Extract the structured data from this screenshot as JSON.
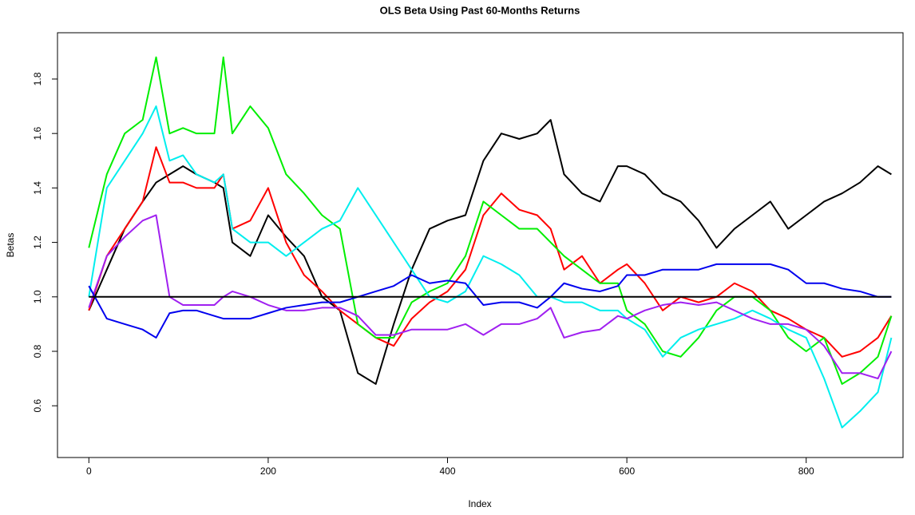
{
  "chart_data": {
    "type": "line",
    "title": "OLS Beta Using Past 60-Months Returns",
    "x_label": "Index",
    "y_label": "Betas",
    "x": [
      0,
      20,
      40,
      60,
      75,
      90,
      105,
      120,
      140,
      150,
      160,
      180,
      200,
      220,
      240,
      260,
      280,
      300,
      320,
      340,
      360,
      380,
      400,
      420,
      440,
      460,
      480,
      500,
      515,
      530,
      550,
      570,
      590,
      600,
      620,
      640,
      660,
      680,
      700,
      720,
      740,
      760,
      780,
      800,
      820,
      840,
      860,
      880,
      895
    ],
    "series": [
      {
        "color": "#000000",
        "values": [
          0.95,
          1.1,
          1.25,
          1.35,
          1.42,
          1.45,
          1.48,
          1.45,
          1.42,
          1.4,
          1.2,
          1.15,
          1.3,
          1.22,
          1.15,
          1.0,
          0.95,
          0.72,
          0.68,
          0.9,
          1.1,
          1.25,
          1.28,
          1.3,
          1.5,
          1.6,
          1.58,
          1.6,
          1.65,
          1.45,
          1.38,
          1.35,
          1.48,
          1.48,
          1.45,
          1.38,
          1.35,
          1.28,
          1.18,
          1.25,
          1.3,
          1.35,
          1.25,
          1.3,
          1.35,
          1.38,
          1.42,
          1.48,
          1.45
        ]
      },
      {
        "color": "#ff0000",
        "values": [
          0.95,
          1.15,
          1.25,
          1.35,
          1.55,
          1.42,
          1.42,
          1.4,
          1.4,
          1.45,
          1.25,
          1.28,
          1.4,
          1.2,
          1.08,
          1.02,
          0.95,
          0.9,
          0.85,
          0.82,
          0.92,
          0.98,
          1.02,
          1.1,
          1.3,
          1.38,
          1.32,
          1.3,
          1.25,
          1.1,
          1.15,
          1.05,
          1.1,
          1.12,
          1.05,
          0.95,
          1.0,
          0.98,
          1.0,
          1.05,
          1.02,
          0.95,
          0.92,
          0.88,
          0.85,
          0.78,
          0.8,
          0.85,
          0.93
        ]
      },
      {
        "color": "#00ee00",
        "values": [
          1.18,
          1.45,
          1.6,
          1.65,
          1.88,
          1.6,
          1.62,
          1.6,
          1.6,
          1.88,
          1.6,
          1.7,
          1.62,
          1.45,
          1.38,
          1.3,
          1.25,
          0.9,
          0.85,
          0.85,
          0.98,
          1.02,
          1.05,
          1.15,
          1.35,
          1.3,
          1.25,
          1.25,
          1.2,
          1.15,
          1.1,
          1.05,
          1.05,
          0.95,
          0.9,
          0.8,
          0.78,
          0.85,
          0.95,
          1.0,
          1.0,
          0.95,
          0.85,
          0.8,
          0.85,
          0.68,
          0.72,
          0.78,
          0.93
        ]
      },
      {
        "color": "#00eeee",
        "values": [
          1.0,
          1.4,
          1.5,
          1.6,
          1.7,
          1.5,
          1.52,
          1.45,
          1.42,
          1.45,
          1.25,
          1.2,
          1.2,
          1.15,
          1.2,
          1.25,
          1.28,
          1.4,
          1.3,
          1.2,
          1.1,
          1.0,
          0.98,
          1.02,
          1.15,
          1.12,
          1.08,
          1.0,
          1.0,
          0.98,
          0.98,
          0.95,
          0.95,
          0.92,
          0.88,
          0.78,
          0.85,
          0.88,
          0.9,
          0.92,
          0.95,
          0.92,
          0.88,
          0.85,
          0.7,
          0.52,
          0.58,
          0.65,
          0.85
        ]
      },
      {
        "color": "#a020f0",
        "values": [
          0.96,
          1.15,
          1.22,
          1.28,
          1.3,
          1.0,
          0.97,
          0.97,
          0.97,
          1.0,
          1.02,
          1.0,
          0.97,
          0.95,
          0.95,
          0.96,
          0.96,
          0.93,
          0.86,
          0.86,
          0.88,
          0.88,
          0.88,
          0.9,
          0.86,
          0.9,
          0.9,
          0.92,
          0.96,
          0.85,
          0.87,
          0.88,
          0.93,
          0.92,
          0.95,
          0.97,
          0.98,
          0.97,
          0.98,
          0.95,
          0.92,
          0.9,
          0.9,
          0.88,
          0.82,
          0.72,
          0.72,
          0.7,
          0.8
        ]
      },
      {
        "color": "#0000ee",
        "values": [
          1.04,
          0.92,
          0.9,
          0.88,
          0.85,
          0.94,
          0.95,
          0.95,
          0.93,
          0.92,
          0.92,
          0.92,
          0.94,
          0.96,
          0.97,
          0.98,
          0.98,
          1.0,
          1.02,
          1.04,
          1.08,
          1.05,
          1.06,
          1.05,
          0.97,
          0.98,
          0.98,
          0.96,
          1.0,
          1.05,
          1.03,
          1.02,
          1.04,
          1.08,
          1.08,
          1.1,
          1.1,
          1.1,
          1.12,
          1.12,
          1.12,
          1.12,
          1.1,
          1.05,
          1.05,
          1.03,
          1.02,
          1.0,
          1.0
        ]
      }
    ],
    "hline": 1,
    "xlim": [
      -35,
      908
    ],
    "ylim": [
      0.41,
      1.97
    ],
    "xticks": [
      0,
      200,
      400,
      600,
      800
    ],
    "yticks": [
      0.6,
      0.8,
      {
        "value": 1,
        "label": "1.0"
      },
      1.2,
      1.4,
      1.6,
      1.8
    ]
  }
}
